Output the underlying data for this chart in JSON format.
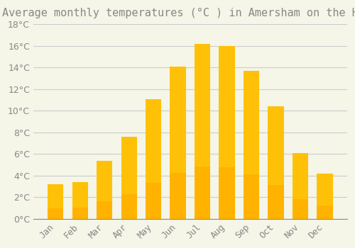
{
  "title": "Average monthly temperatures (°C ) in Amersham on the Hill",
  "months": [
    "Jan",
    "Feb",
    "Mar",
    "Apr",
    "May",
    "Jun",
    "Jul",
    "Aug",
    "Sep",
    "Oct",
    "Nov",
    "Dec"
  ],
  "temperatures": [
    3.2,
    3.4,
    5.4,
    7.6,
    11.1,
    14.1,
    16.2,
    16.0,
    13.7,
    10.4,
    6.1,
    4.2
  ],
  "bar_color_top": "#FFC107",
  "bar_color_bottom": "#FFB300",
  "background_color": "#F5F5E8",
  "grid_color": "#CCCCCC",
  "ylim": [
    0,
    18
  ],
  "yticks": [
    0,
    2,
    4,
    6,
    8,
    10,
    12,
    14,
    16,
    18
  ],
  "title_fontsize": 11,
  "tick_fontsize": 9,
  "font_color": "#888888"
}
